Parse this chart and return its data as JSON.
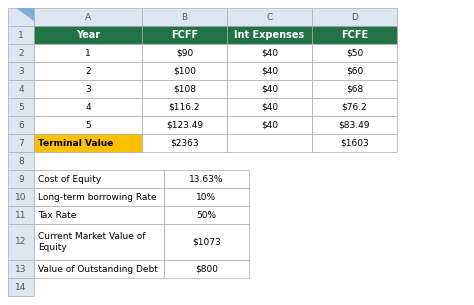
{
  "col_headers": [
    "A",
    "B",
    "C",
    "D"
  ],
  "row_numbers": [
    "1",
    "2",
    "3",
    "4",
    "5",
    "6",
    "7",
    "8",
    "9",
    "10",
    "11",
    "12",
    "13",
    "14"
  ],
  "header_bg": "#217346",
  "header_text_color": "#ffffff",
  "yellow_bg": "#FFC000",
  "yellow_text_color": "#000000",
  "white_bg": "#ffffff",
  "grid_color": "#aaaaaa",
  "row_num_col_color": "#dce6f1",
  "corner_color": "#dce6f1",
  "table1_rows": [
    [
      "Year",
      "FCFF",
      "Int Expenses",
      "FCFE"
    ],
    [
      "1",
      "$90",
      "$40",
      "$50"
    ],
    [
      "2",
      "$100",
      "$40",
      "$60"
    ],
    [
      "3",
      "$108",
      "$40",
      "$68"
    ],
    [
      "4",
      "$116.2",
      "$40",
      "$76.2"
    ],
    [
      "5",
      "$123.49",
      "$40",
      "$83.49"
    ],
    [
      "Terminal Value",
      "$2363",
      "",
      "$1603"
    ]
  ],
  "table2_rows": [
    [
      "Cost of Equity",
      "13.63%"
    ],
    [
      "Long-term borrowing Rate",
      "10%"
    ],
    [
      "Tax Rate",
      "50%"
    ],
    [
      "Current Market Value of\nEquity",
      "$1073"
    ],
    [
      "Value of Outstanding Debt",
      "$800"
    ]
  ],
  "font_size": 6.5,
  "header_font_size": 7.0
}
